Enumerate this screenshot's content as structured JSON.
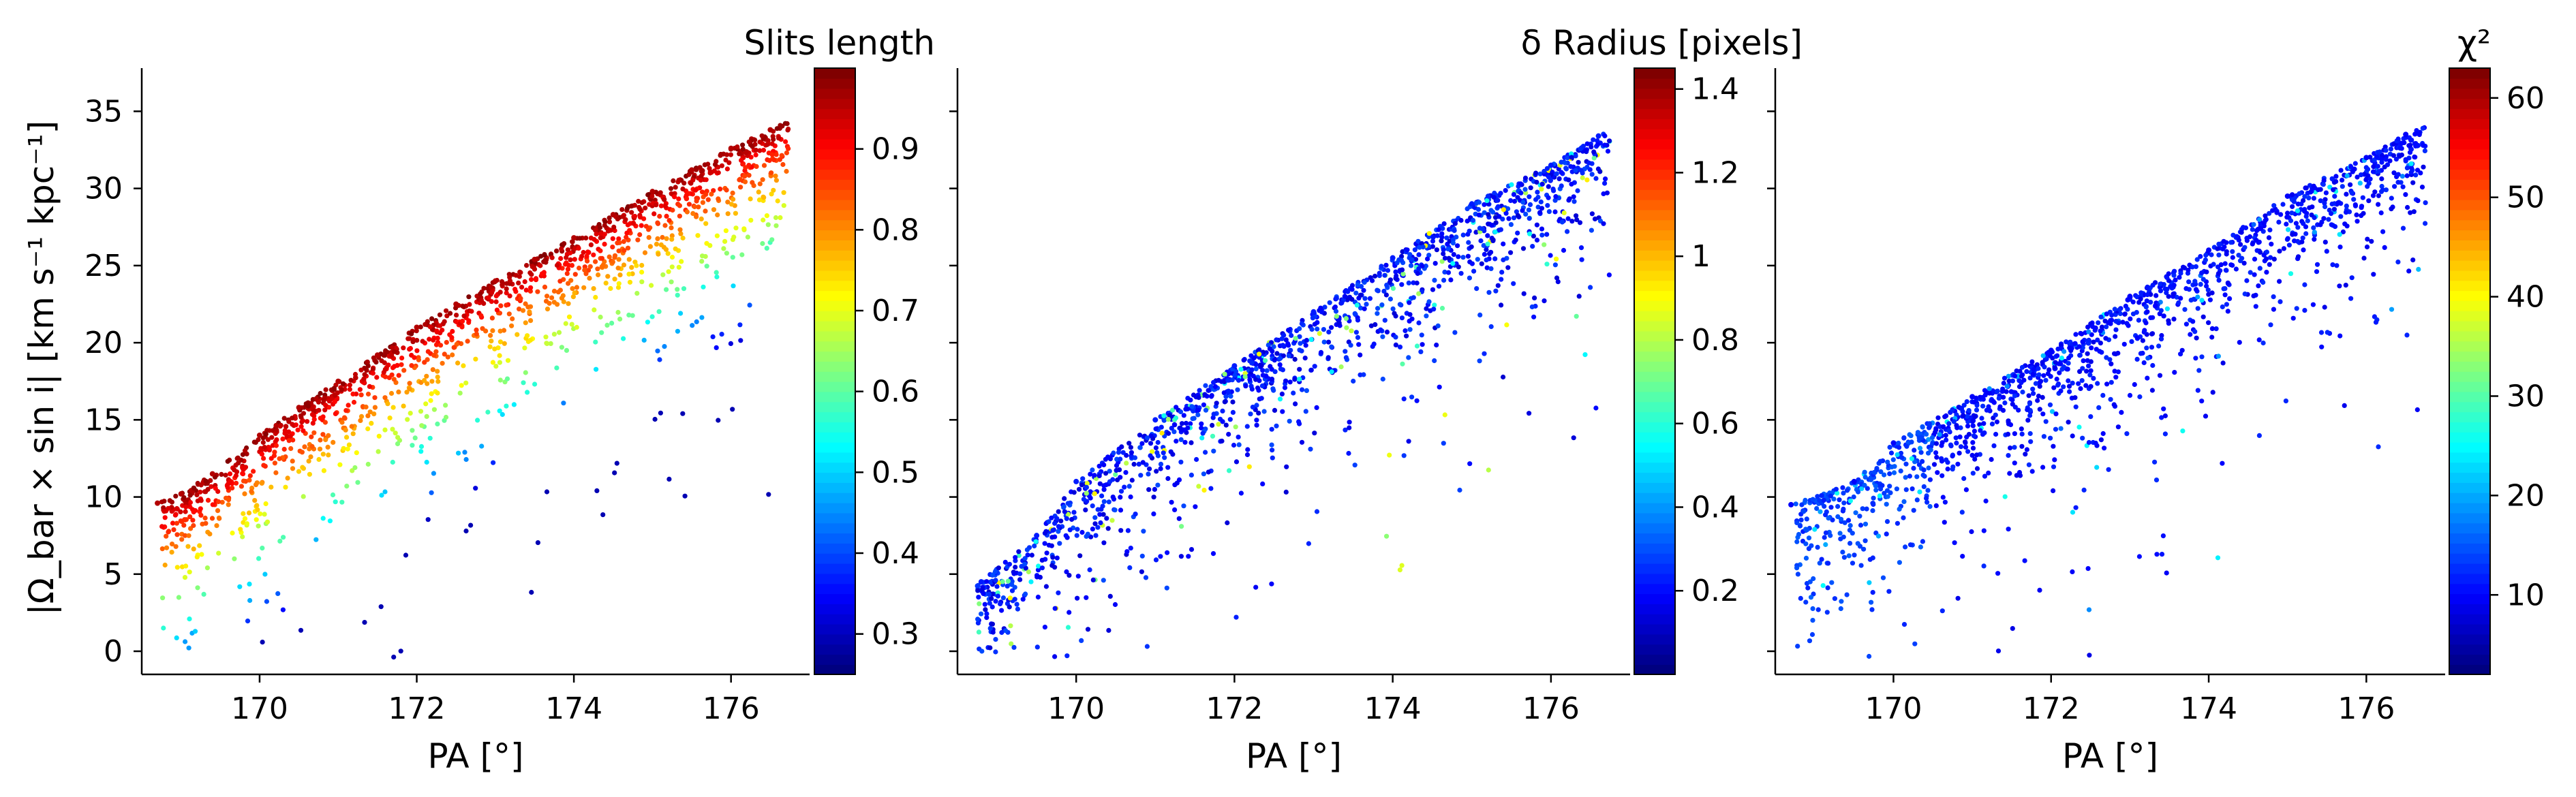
{
  "chart_data": [
    {
      "type": "scatter",
      "title": "Slits length",
      "xlabel": "PA [°]",
      "ylabel": "|Ω_bar × sin i|   [km s⁻¹ kpc⁻¹]",
      "xlim": [
        168.5,
        177.0
      ],
      "ylim": [
        -1.5,
        37.8
      ],
      "xticks": [
        170,
        172,
        174,
        176
      ],
      "yticks": [
        0,
        5,
        10,
        15,
        20,
        25,
        30,
        35
      ],
      "colorbar": {
        "label": "Slits length",
        "range": [
          0.25,
          1.0
        ],
        "ticks": [
          0.3,
          0.4,
          0.5,
          0.6,
          0.7,
          0.8,
          0.9
        ],
        "colormap": "jet"
      },
      "color_trend": "increases toward the upper-left edge of the point cloud",
      "series": [
        {
          "values": [
            [
              168.7,
              9.6
            ],
            [
              169.0,
              10.2
            ],
            [
              169.4,
              11.5
            ],
            [
              170.0,
              14.0
            ],
            [
              170.5,
              15.8
            ],
            [
              171.0,
              17.5
            ],
            [
              171.5,
              19.2
            ],
            [
              172.0,
              21.0
            ],
            [
              172.5,
              22.5
            ],
            [
              173.0,
              24.0
            ],
            [
              173.5,
              25.4
            ],
            [
              174.0,
              26.8
            ],
            [
              174.5,
              28.3
            ],
            [
              175.0,
              29.8
            ],
            [
              175.5,
              31.2
            ],
            [
              176.0,
              32.6
            ],
            [
              176.5,
              33.8
            ]
          ]
        }
      ]
    },
    {
      "type": "scatter",
      "title": "δ Radius [pixels]",
      "xlabel": "PA [°]",
      "ylabel": "",
      "xlim": [
        168.5,
        177.0
      ],
      "ylim": [
        -1.5,
        37.8
      ],
      "xticks": [
        170,
        172,
        174,
        176
      ],
      "colorbar": {
        "label": "δ Radius [pixels]",
        "range": [
          0.0,
          1.45
        ],
        "ticks": [
          0.2,
          0.4,
          0.6,
          0.8,
          1.0,
          1.2,
          1.4
        ],
        "colormap": "jet"
      },
      "color_trend": "mostly low values (blue) with scattered cyan/green/yellow points",
      "series": [
        {
          "values": [
            [
              168.8,
              4.5
            ],
            [
              169.5,
              7.5
            ],
            [
              170.0,
              11.0
            ],
            [
              171.0,
              15.0
            ],
            [
              172.0,
              18.5
            ],
            [
              173.0,
              22.0
            ],
            [
              174.0,
              25.5
            ],
            [
              175.0,
              29.0
            ],
            [
              176.0,
              31.5
            ],
            [
              176.6,
              33.4
            ]
          ]
        }
      ]
    },
    {
      "type": "scatter",
      "title": "χ²",
      "xlabel": "PA [°]",
      "ylabel": "",
      "xlim": [
        168.5,
        177.0
      ],
      "ylim": [
        -1.5,
        37.8
      ],
      "xticks": [
        170,
        172,
        174,
        176
      ],
      "colorbar": {
        "label": "χ²",
        "range": [
          2,
          63
        ],
        "ticks": [
          10,
          20,
          30,
          40,
          50,
          60
        ],
        "colormap": "jet"
      },
      "color_trend": "mostly low values (dark blue), slightly higher at low PA",
      "series": [
        {
          "values": [
            [
              168.7,
              9.5
            ],
            [
              169.5,
              11.0
            ],
            [
              170.0,
              13.5
            ],
            [
              171.0,
              16.5
            ],
            [
              172.0,
              19.5
            ],
            [
              173.0,
              23.0
            ],
            [
              174.0,
              26.0
            ],
            [
              175.0,
              29.5
            ],
            [
              176.0,
              32.0
            ],
            [
              176.5,
              33.5
            ]
          ]
        }
      ]
    }
  ]
}
